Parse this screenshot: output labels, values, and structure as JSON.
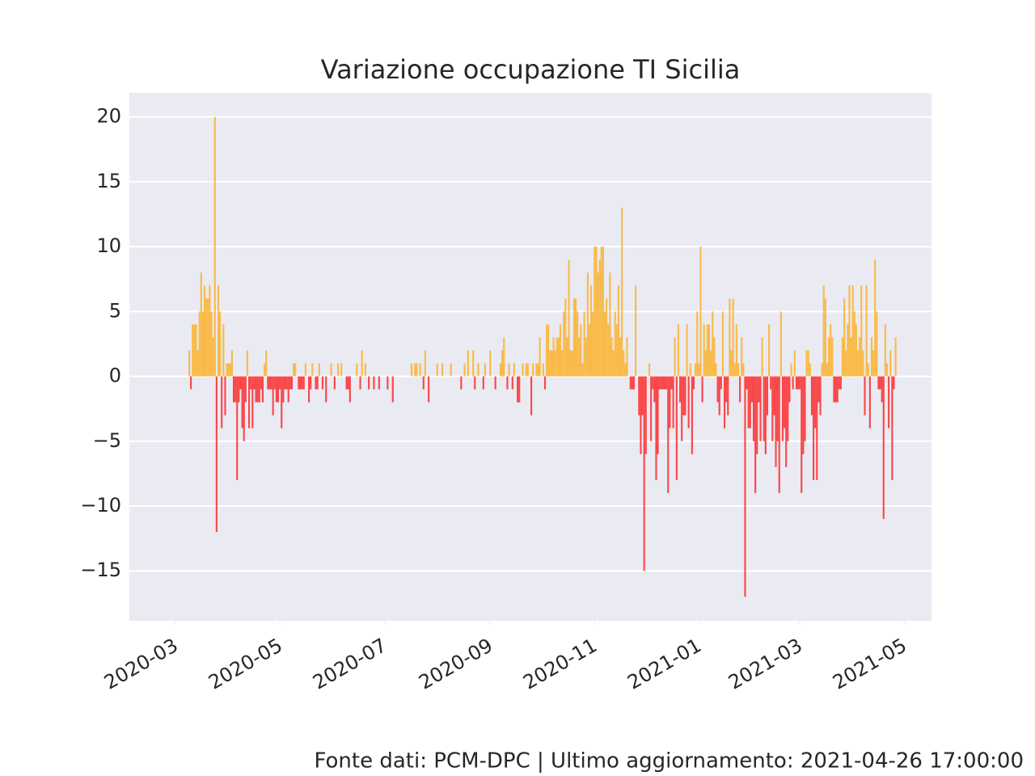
{
  "chart_data": {
    "type": "bar",
    "title": "Variazione occupazione TI Sicilia",
    "footer": "Fonte dati: PCM-DPC | Ultimo aggiornamento: 2021-04-26 17:00:00",
    "positive_color": "#ffa500",
    "negative_color": "#ff0000",
    "grid": true,
    "xlim": [
      "2020-02-03",
      "2021-05-17"
    ],
    "ylim": [
      -18.85,
      21.85
    ],
    "yticks": [
      {
        "value": -15,
        "label": "−15"
      },
      {
        "value": -10,
        "label": "−10"
      },
      {
        "value": -5,
        "label": "−5"
      },
      0,
      5,
      10,
      15,
      20
    ],
    "xticks": [
      {
        "value": "2020-03-01",
        "label": "2020-03"
      },
      {
        "value": "2020-05-01",
        "label": "2020-05"
      },
      {
        "value": "2020-07-01",
        "label": "2020-07"
      },
      {
        "value": "2020-09-01",
        "label": "2020-09"
      },
      {
        "value": "2020-11-01",
        "label": "2020-11"
      },
      {
        "value": "2021-01-01",
        "label": "2021-01"
      },
      {
        "value": "2021-03-01",
        "label": "2021-03"
      },
      {
        "value": "2021-05-01",
        "label": "2021-05"
      }
    ],
    "x": [
      "2020-02-24",
      "2020-02-25",
      "2020-02-26",
      "2020-02-27",
      "2020-02-28",
      "2020-02-29",
      "2020-03-01",
      "2020-03-02",
      "2020-03-03",
      "2020-03-04",
      "2020-03-05",
      "2020-03-06",
      "2020-03-07",
      "2020-03-08",
      "2020-03-09",
      "2020-03-10",
      "2020-03-11",
      "2020-03-12",
      "2020-03-13",
      "2020-03-14",
      "2020-03-15",
      "2020-03-16",
      "2020-03-17",
      "2020-03-18",
      "2020-03-19",
      "2020-03-20",
      "2020-03-21",
      "2020-03-22",
      "2020-03-23",
      "2020-03-24",
      "2020-03-25",
      "2020-03-26",
      "2020-03-27",
      "2020-03-28",
      "2020-03-29",
      "2020-03-30",
      "2020-03-31",
      "2020-04-01",
      "2020-04-02",
      "2020-04-03",
      "2020-04-04",
      "2020-04-05",
      "2020-04-06",
      "2020-04-07",
      "2020-04-08",
      "2020-04-09",
      "2020-04-10",
      "2020-04-11",
      "2020-04-12",
      "2020-04-13",
      "2020-04-14",
      "2020-04-15",
      "2020-04-16",
      "2020-04-17",
      "2020-04-18",
      "2020-04-19",
      "2020-04-20",
      "2020-04-21",
      "2020-04-22",
      "2020-04-23",
      "2020-04-24",
      "2020-04-25",
      "2020-04-26",
      "2020-04-27",
      "2020-04-28",
      "2020-04-29",
      "2020-04-30",
      "2020-05-01",
      "2020-05-02",
      "2020-05-03",
      "2020-05-04",
      "2020-05-05",
      "2020-05-06",
      "2020-05-07",
      "2020-05-08",
      "2020-05-09",
      "2020-05-10",
      "2020-05-11",
      "2020-05-12",
      "2020-05-13",
      "2020-05-14",
      "2020-05-15",
      "2020-05-16",
      "2020-05-17",
      "2020-05-18",
      "2020-05-19",
      "2020-05-20",
      "2020-05-21",
      "2020-05-22",
      "2020-05-23",
      "2020-05-24",
      "2020-05-25",
      "2020-05-26",
      "2020-05-27",
      "2020-05-28",
      "2020-05-29",
      "2020-05-30",
      "2020-05-31",
      "2020-06-01",
      "2020-06-02",
      "2020-06-03",
      "2020-06-04",
      "2020-06-05",
      "2020-06-06",
      "2020-06-07",
      "2020-06-08",
      "2020-06-09",
      "2020-06-10",
      "2020-06-11",
      "2020-06-12",
      "2020-06-13",
      "2020-06-14",
      "2020-06-15",
      "2020-06-16",
      "2020-06-17",
      "2020-06-18",
      "2020-06-19",
      "2020-06-20",
      "2020-06-21",
      "2020-06-22",
      "2020-06-23",
      "2020-06-24",
      "2020-06-25",
      "2020-06-26",
      "2020-06-27",
      "2020-06-28",
      "2020-06-29",
      "2020-06-30",
      "2020-07-01",
      "2020-07-02",
      "2020-07-03",
      "2020-07-04",
      "2020-07-05",
      "2020-07-06",
      "2020-07-07",
      "2020-07-08",
      "2020-07-09",
      "2020-07-10",
      "2020-07-11",
      "2020-07-12",
      "2020-07-13",
      "2020-07-14",
      "2020-07-15",
      "2020-07-16",
      "2020-07-17",
      "2020-07-18",
      "2020-07-19",
      "2020-07-20",
      "2020-07-21",
      "2020-07-22",
      "2020-07-23",
      "2020-07-24",
      "2020-07-25",
      "2020-07-26",
      "2020-07-27",
      "2020-07-28",
      "2020-07-29",
      "2020-07-30",
      "2020-07-31",
      "2020-08-01",
      "2020-08-02",
      "2020-08-03",
      "2020-08-04",
      "2020-08-05",
      "2020-08-06",
      "2020-08-07",
      "2020-08-08",
      "2020-08-09",
      "2020-08-10",
      "2020-08-11",
      "2020-08-12",
      "2020-08-13",
      "2020-08-14",
      "2020-08-15",
      "2020-08-16",
      "2020-08-17",
      "2020-08-18",
      "2020-08-19",
      "2020-08-20",
      "2020-08-21",
      "2020-08-22",
      "2020-08-23",
      "2020-08-24",
      "2020-08-25",
      "2020-08-26",
      "2020-08-27",
      "2020-08-28",
      "2020-08-29",
      "2020-08-30",
      "2020-08-31",
      "2020-09-01",
      "2020-09-02",
      "2020-09-03",
      "2020-09-04",
      "2020-09-05",
      "2020-09-06",
      "2020-09-07",
      "2020-09-08",
      "2020-09-09",
      "2020-09-10",
      "2020-09-11",
      "2020-09-12",
      "2020-09-13",
      "2020-09-14",
      "2020-09-15",
      "2020-09-16",
      "2020-09-17",
      "2020-09-18",
      "2020-09-19",
      "2020-09-20",
      "2020-09-21",
      "2020-09-22",
      "2020-09-23",
      "2020-09-24",
      "2020-09-25",
      "2020-09-26",
      "2020-09-27",
      "2020-09-28",
      "2020-09-29",
      "2020-09-30",
      "2020-10-01",
      "2020-10-02",
      "2020-10-03",
      "2020-10-04",
      "2020-10-05",
      "2020-10-06",
      "2020-10-07",
      "2020-10-08",
      "2020-10-09",
      "2020-10-10",
      "2020-10-11",
      "2020-10-12",
      "2020-10-13",
      "2020-10-14",
      "2020-10-15",
      "2020-10-16",
      "2020-10-17",
      "2020-10-18",
      "2020-10-19",
      "2020-10-20",
      "2020-10-21",
      "2020-10-22",
      "2020-10-23",
      "2020-10-24",
      "2020-10-25",
      "2020-10-26",
      "2020-10-27",
      "2020-10-28",
      "2020-10-29",
      "2020-10-30",
      "2020-10-31",
      "2020-11-01",
      "2020-11-02",
      "2020-11-03",
      "2020-11-04",
      "2020-11-05",
      "2020-11-06",
      "2020-11-07",
      "2020-11-08",
      "2020-11-09",
      "2020-11-10",
      "2020-11-11",
      "2020-11-12",
      "2020-11-13",
      "2020-11-14",
      "2020-11-15",
      "2020-11-16",
      "2020-11-17",
      "2020-11-18",
      "2020-11-19",
      "2020-11-20",
      "2020-11-21",
      "2020-11-22",
      "2020-11-23",
      "2020-11-24",
      "2020-11-25",
      "2020-11-26",
      "2020-11-27",
      "2020-11-28",
      "2020-11-29",
      "2020-11-30",
      "2020-12-01",
      "2020-12-02",
      "2020-12-03",
      "2020-12-04",
      "2020-12-05",
      "2020-12-06",
      "2020-12-07",
      "2020-12-08",
      "2020-12-09",
      "2020-12-10",
      "2020-12-11",
      "2020-12-12",
      "2020-12-13",
      "2020-12-14",
      "2020-12-15",
      "2020-12-16",
      "2020-12-17",
      "2020-12-18",
      "2020-12-19",
      "2020-12-20",
      "2020-12-21",
      "2020-12-22",
      "2020-12-23",
      "2020-12-24",
      "2020-12-25",
      "2020-12-26",
      "2020-12-27",
      "2020-12-28",
      "2020-12-29",
      "2020-12-30",
      "2020-12-31",
      "2021-01-01",
      "2021-01-02",
      "2021-01-03",
      "2021-01-04",
      "2021-01-05",
      "2021-01-06",
      "2021-01-07",
      "2021-01-08",
      "2021-01-09",
      "2021-01-10",
      "2021-01-11",
      "2021-01-12",
      "2021-01-13",
      "2021-01-14",
      "2021-01-15",
      "2021-01-16",
      "2021-01-17",
      "2021-01-18",
      "2021-01-19",
      "2021-01-20",
      "2021-01-21",
      "2021-01-22",
      "2021-01-23",
      "2021-01-24",
      "2021-01-25",
      "2021-01-26",
      "2021-01-27",
      "2021-01-28",
      "2021-01-29",
      "2021-01-30",
      "2021-01-31",
      "2021-02-01",
      "2021-02-02",
      "2021-02-03",
      "2021-02-04",
      "2021-02-05",
      "2021-02-06",
      "2021-02-07",
      "2021-02-08",
      "2021-02-09",
      "2021-02-10",
      "2021-02-11",
      "2021-02-12",
      "2021-02-13",
      "2021-02-14",
      "2021-02-15",
      "2021-02-16",
      "2021-02-17",
      "2021-02-18",
      "2021-02-19",
      "2021-02-20",
      "2021-02-21",
      "2021-02-22",
      "2021-02-23",
      "2021-02-24",
      "2021-02-25",
      "2021-02-26",
      "2021-02-27",
      "2021-02-28",
      "2021-03-01",
      "2021-03-02",
      "2021-03-03",
      "2021-03-04",
      "2021-03-05",
      "2021-03-06",
      "2021-03-07",
      "2021-03-08",
      "2021-03-09",
      "2021-03-10",
      "2021-03-11",
      "2021-03-12",
      "2021-03-13",
      "2021-03-14",
      "2021-03-15",
      "2021-03-16",
      "2021-03-17",
      "2021-03-18",
      "2021-03-19",
      "2021-03-20",
      "2021-03-21",
      "2021-03-22",
      "2021-03-23",
      "2021-03-24",
      "2021-03-25",
      "2021-03-26",
      "2021-03-27",
      "2021-03-28",
      "2021-03-29",
      "2021-03-30",
      "2021-03-31",
      "2021-04-01",
      "2021-04-02",
      "2021-04-03",
      "2021-04-04",
      "2021-04-05",
      "2021-04-06",
      "2021-04-07",
      "2021-04-08",
      "2021-04-09",
      "2021-04-10",
      "2021-04-11",
      "2021-04-12",
      "2021-04-13",
      "2021-04-14",
      "2021-04-15",
      "2021-04-16",
      "2021-04-17",
      "2021-04-18",
      "2021-04-19",
      "2021-04-20",
      "2021-04-21",
      "2021-04-22",
      "2021-04-23",
      "2021-04-24",
      "2021-04-25",
      "2021-04-26"
    ],
    "values": [
      0,
      0,
      0,
      0,
      0,
      0,
      0,
      0,
      0,
      0,
      0,
      0,
      0,
      0,
      2,
      -1,
      4,
      4,
      4,
      2,
      5,
      8,
      5,
      7,
      6,
      6,
      7,
      5,
      3,
      20,
      -12,
      7,
      5,
      -4,
      4,
      -3,
      1,
      1,
      1,
      2,
      -2,
      -2,
      -8,
      -2,
      -1,
      -4,
      -5,
      -2,
      2,
      -4,
      -1,
      -4,
      -1,
      -2,
      -2,
      -2,
      -1,
      -2,
      1,
      2,
      -1,
      -1,
      -1,
      -3,
      -1,
      -2,
      -2,
      -1,
      -4,
      -2,
      -1,
      -1,
      -2,
      -1,
      -1,
      1,
      1,
      0,
      -1,
      -1,
      -1,
      -1,
      1,
      0,
      -2,
      -1,
      1,
      0,
      -1,
      -1,
      1,
      0,
      -1,
      0,
      -2,
      0,
      0,
      1,
      0,
      -1,
      0,
      1,
      0,
      1,
      0,
      0,
      -1,
      -1,
      -2,
      0,
      0,
      0,
      1,
      0,
      -1,
      2,
      0,
      1,
      0,
      -1,
      0,
      0,
      -1,
      0,
      0,
      -1,
      0,
      0,
      0,
      0,
      -1,
      0,
      0,
      -2,
      0,
      0,
      0,
      0,
      0,
      0,
      0,
      0,
      0,
      0,
      1,
      0,
      1,
      1,
      0,
      1,
      0,
      -1,
      2,
      0,
      -2,
      0,
      0,
      0,
      0,
      1,
      0,
      0,
      1,
      0,
      0,
      0,
      0,
      1,
      0,
      0,
      0,
      0,
      0,
      -1,
      0,
      1,
      0,
      2,
      0,
      0,
      2,
      -1,
      0,
      1,
      0,
      0,
      -1,
      1,
      0,
      0,
      2,
      0,
      0,
      -1,
      0,
      0,
      1,
      2,
      3,
      0,
      -1,
      1,
      0,
      -1,
      1,
      0,
      -2,
      -2,
      0,
      1,
      0,
      1,
      1,
      0,
      -3,
      1,
      0,
      1,
      1,
      3,
      0,
      1,
      -1,
      4,
      4,
      2,
      2,
      3,
      2,
      3,
      3,
      4,
      2,
      5,
      6,
      3,
      9,
      2,
      2,
      6,
      6,
      5,
      3,
      4,
      1,
      5,
      3,
      8,
      4,
      7,
      5,
      10,
      10,
      8,
      9,
      10,
      10,
      5,
      6,
      4,
      8,
      3,
      2,
      5,
      4,
      7,
      3,
      13,
      2,
      1,
      3,
      0,
      -1,
      -1,
      -1,
      7,
      0,
      -3,
      -6,
      -3,
      -15,
      -6,
      0,
      1,
      -5,
      -1,
      -2,
      -8,
      -6,
      -1,
      -1,
      -1,
      -1,
      -1,
      -9,
      -4,
      -1,
      -4,
      3,
      -8,
      4,
      -2,
      -5,
      -3,
      -3,
      4,
      -4,
      1,
      -6,
      -1,
      1,
      5,
      1,
      10,
      -2,
      4,
      2,
      4,
      4,
      2,
      5,
      3,
      1,
      -2,
      -3,
      -1,
      5,
      -4,
      -2,
      -3,
      6,
      2,
      6,
      1,
      4,
      1,
      -2,
      3,
      1,
      -17,
      -1,
      -4,
      -4,
      -2,
      -5,
      -9,
      -6,
      -2,
      -5,
      3,
      -5,
      -6,
      -3,
      4,
      -1,
      -5,
      -3,
      -7,
      -5,
      -9,
      5,
      -5,
      -4,
      -7,
      -5,
      -2,
      1,
      -1,
      2,
      -1,
      -1,
      -1,
      -9,
      -6,
      -5,
      2,
      2,
      1,
      -3,
      -8,
      -4,
      -8,
      -2,
      -3,
      1,
      7,
      6,
      1,
      3,
      4,
      3,
      -2,
      -2,
      -2,
      -1,
      -1,
      3,
      6,
      2,
      4,
      7,
      3,
      7,
      5,
      4,
      2,
      3,
      7,
      2,
      -3,
      7,
      1,
      -4,
      3,
      2,
      9,
      5,
      -1,
      -1,
      -2,
      -11,
      4,
      1,
      -4,
      2,
      -8,
      -1,
      3
    ]
  }
}
